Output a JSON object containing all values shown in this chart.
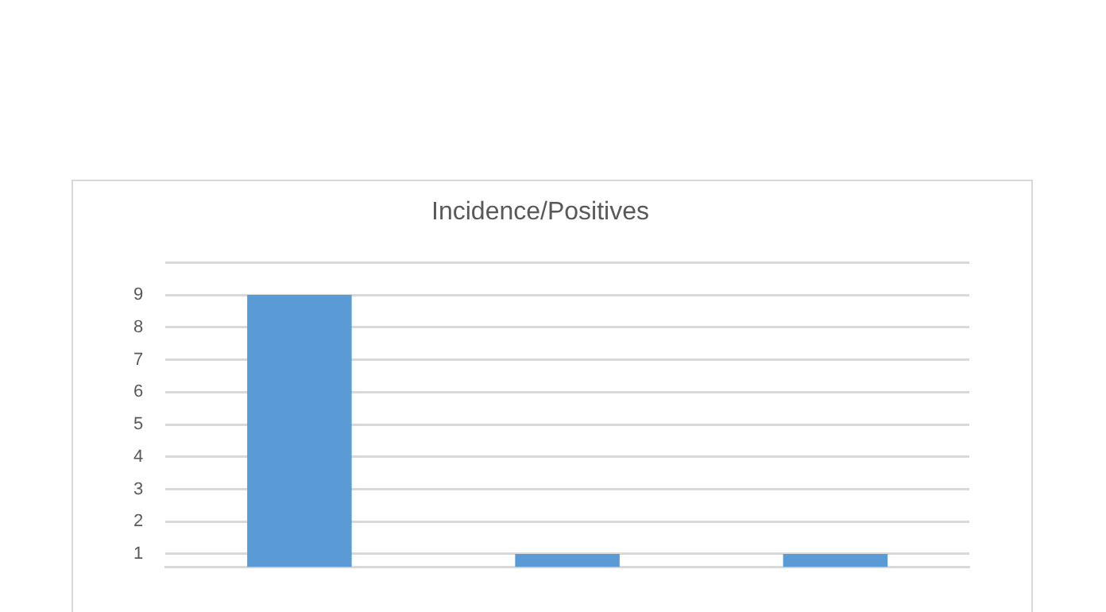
{
  "chart_data": {
    "type": "bar",
    "title": "Incidence/Positives",
    "categories": [
      null,
      null,
      null
    ],
    "values": [
      9,
      1,
      1
    ],
    "color": "#5b9bd5",
    "ylim": [
      0.6,
      10
    ],
    "yticks": [
      1,
      2,
      3,
      4,
      5,
      6,
      7,
      8,
      9,
      {
        "value": 10,
        "label": null
      }
    ],
    "grid": "y",
    "legend": false
  }
}
